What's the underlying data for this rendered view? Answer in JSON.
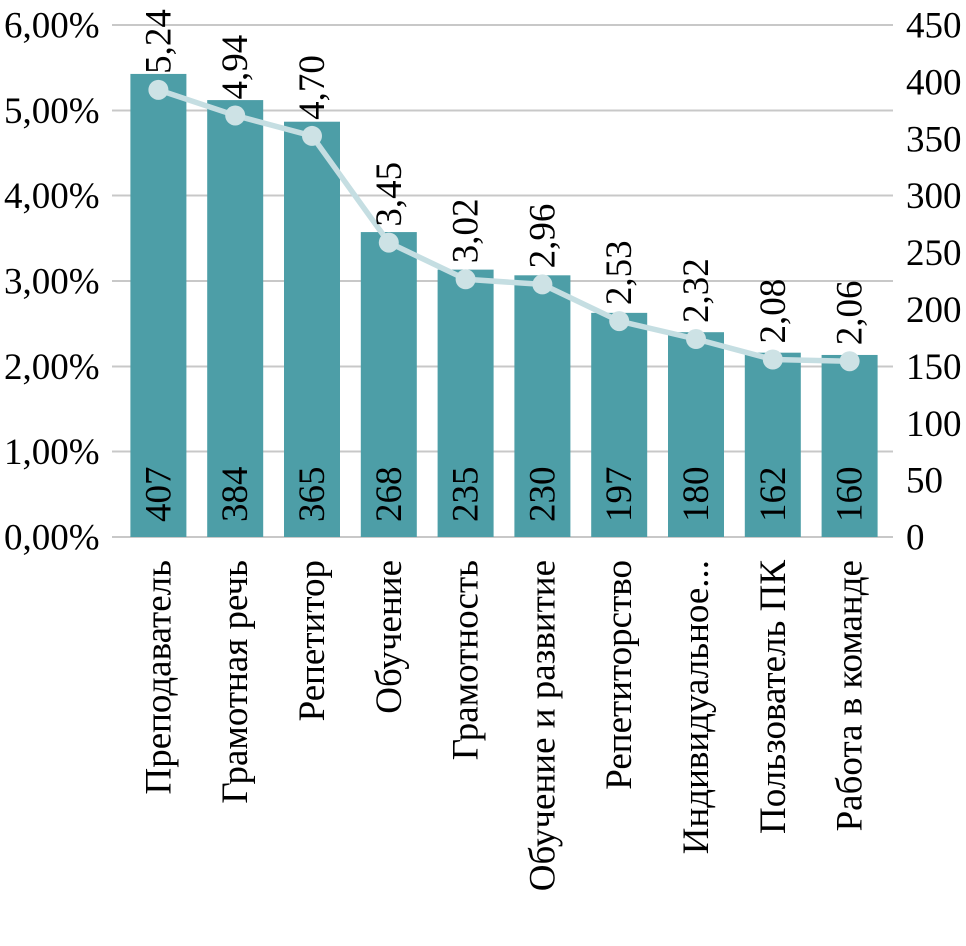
{
  "chart_data": {
    "type": "combo-bar-line",
    "title": "",
    "categories": [
      "Преподаватель",
      "Грамотная речь",
      "Репетитор",
      "Обучение",
      "Грамотность",
      "Обучение и развитие",
      "Репетиторство",
      "Индивидуальное...",
      "Пользователь ПК",
      "Работа в команде"
    ],
    "series": [
      {
        "type": "bar",
        "axis": "right",
        "values": [
          407,
          384,
          365,
          268,
          235,
          230,
          197,
          180,
          162,
          160
        ],
        "labels": [
          "407",
          "384",
          "365",
          "268",
          "235",
          "230",
          "197",
          "180",
          "162",
          "160"
        ]
      },
      {
        "type": "line",
        "axis": "left",
        "values": [
          5.24,
          4.94,
          4.7,
          3.45,
          3.02,
          2.96,
          2.53,
          2.32,
          2.08,
          2.06
        ],
        "labels": [
          "5,24",
          "4,94",
          "4,70",
          "3,45",
          "3,02",
          "2,96",
          "2,53",
          "2,32",
          "2,08",
          "2,06"
        ]
      }
    ],
    "left_axis": {
      "min": 0,
      "max": 6,
      "step": 1,
      "tick_labels": [
        "0,00%",
        "1,00%",
        "2,00%",
        "3,00%",
        "4,00%",
        "5,00%",
        "6,00%"
      ]
    },
    "right_axis": {
      "min": 0,
      "max": 450,
      "step": 50,
      "tick_labels": [
        "0",
        "50",
        "100",
        "150",
        "200",
        "250",
        "300",
        "350",
        "400",
        "450"
      ]
    },
    "grid": true,
    "legend": "none",
    "colors": {
      "bar": "#4d9ea7",
      "line": "#c5dee2",
      "marker_fill": "#cde2e5",
      "gridline": "#c8c8c8",
      "text": "#000000"
    }
  }
}
